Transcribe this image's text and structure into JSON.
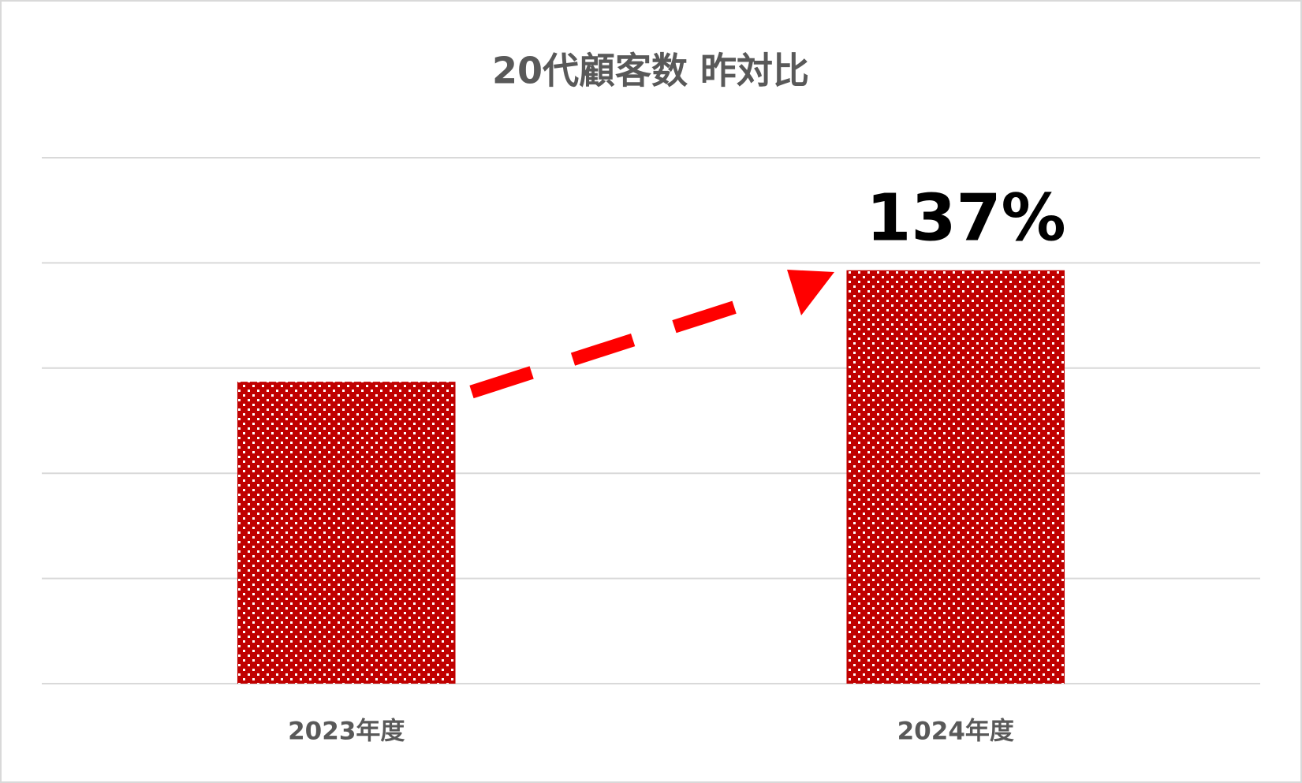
{
  "chart_data": {
    "type": "bar",
    "title": "20代顧客数 昨対比",
    "categories": [
      "2023年度",
      "2024年度"
    ],
    "values": [
      2.87,
      3.93
    ],
    "color": "#c00000",
    "ylim": [
      0,
      5
    ],
    "yticks": [
      0,
      1,
      2,
      3,
      4,
      5
    ],
    "grid": true,
    "annotation": "137%"
  }
}
